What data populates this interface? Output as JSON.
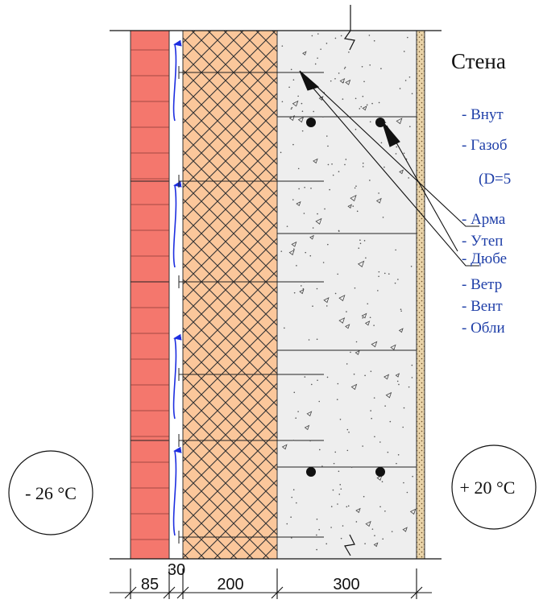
{
  "title": "Стена",
  "legend": [
    "- Внут",
    "- Газоб",
    "(D=5",
    "- Арма",
    "- Утеп",
    "- Дюбе",
    "- Ветр",
    "- Вент",
    "- Обли"
  ],
  "temperatures": {
    "outside": "- 26 °С",
    "inside": "+ 20 °С"
  },
  "dimensions": [
    "85",
    "30",
    "200",
    "300"
  ],
  "colors": {
    "brick": "#f4776d",
    "insulation": "#fbc79b",
    "concrete": "#eeeeee",
    "air_arrow": "#1d2ee0",
    "legend_text": "#1f3fa8",
    "plaster": "#e9d3a8"
  }
}
